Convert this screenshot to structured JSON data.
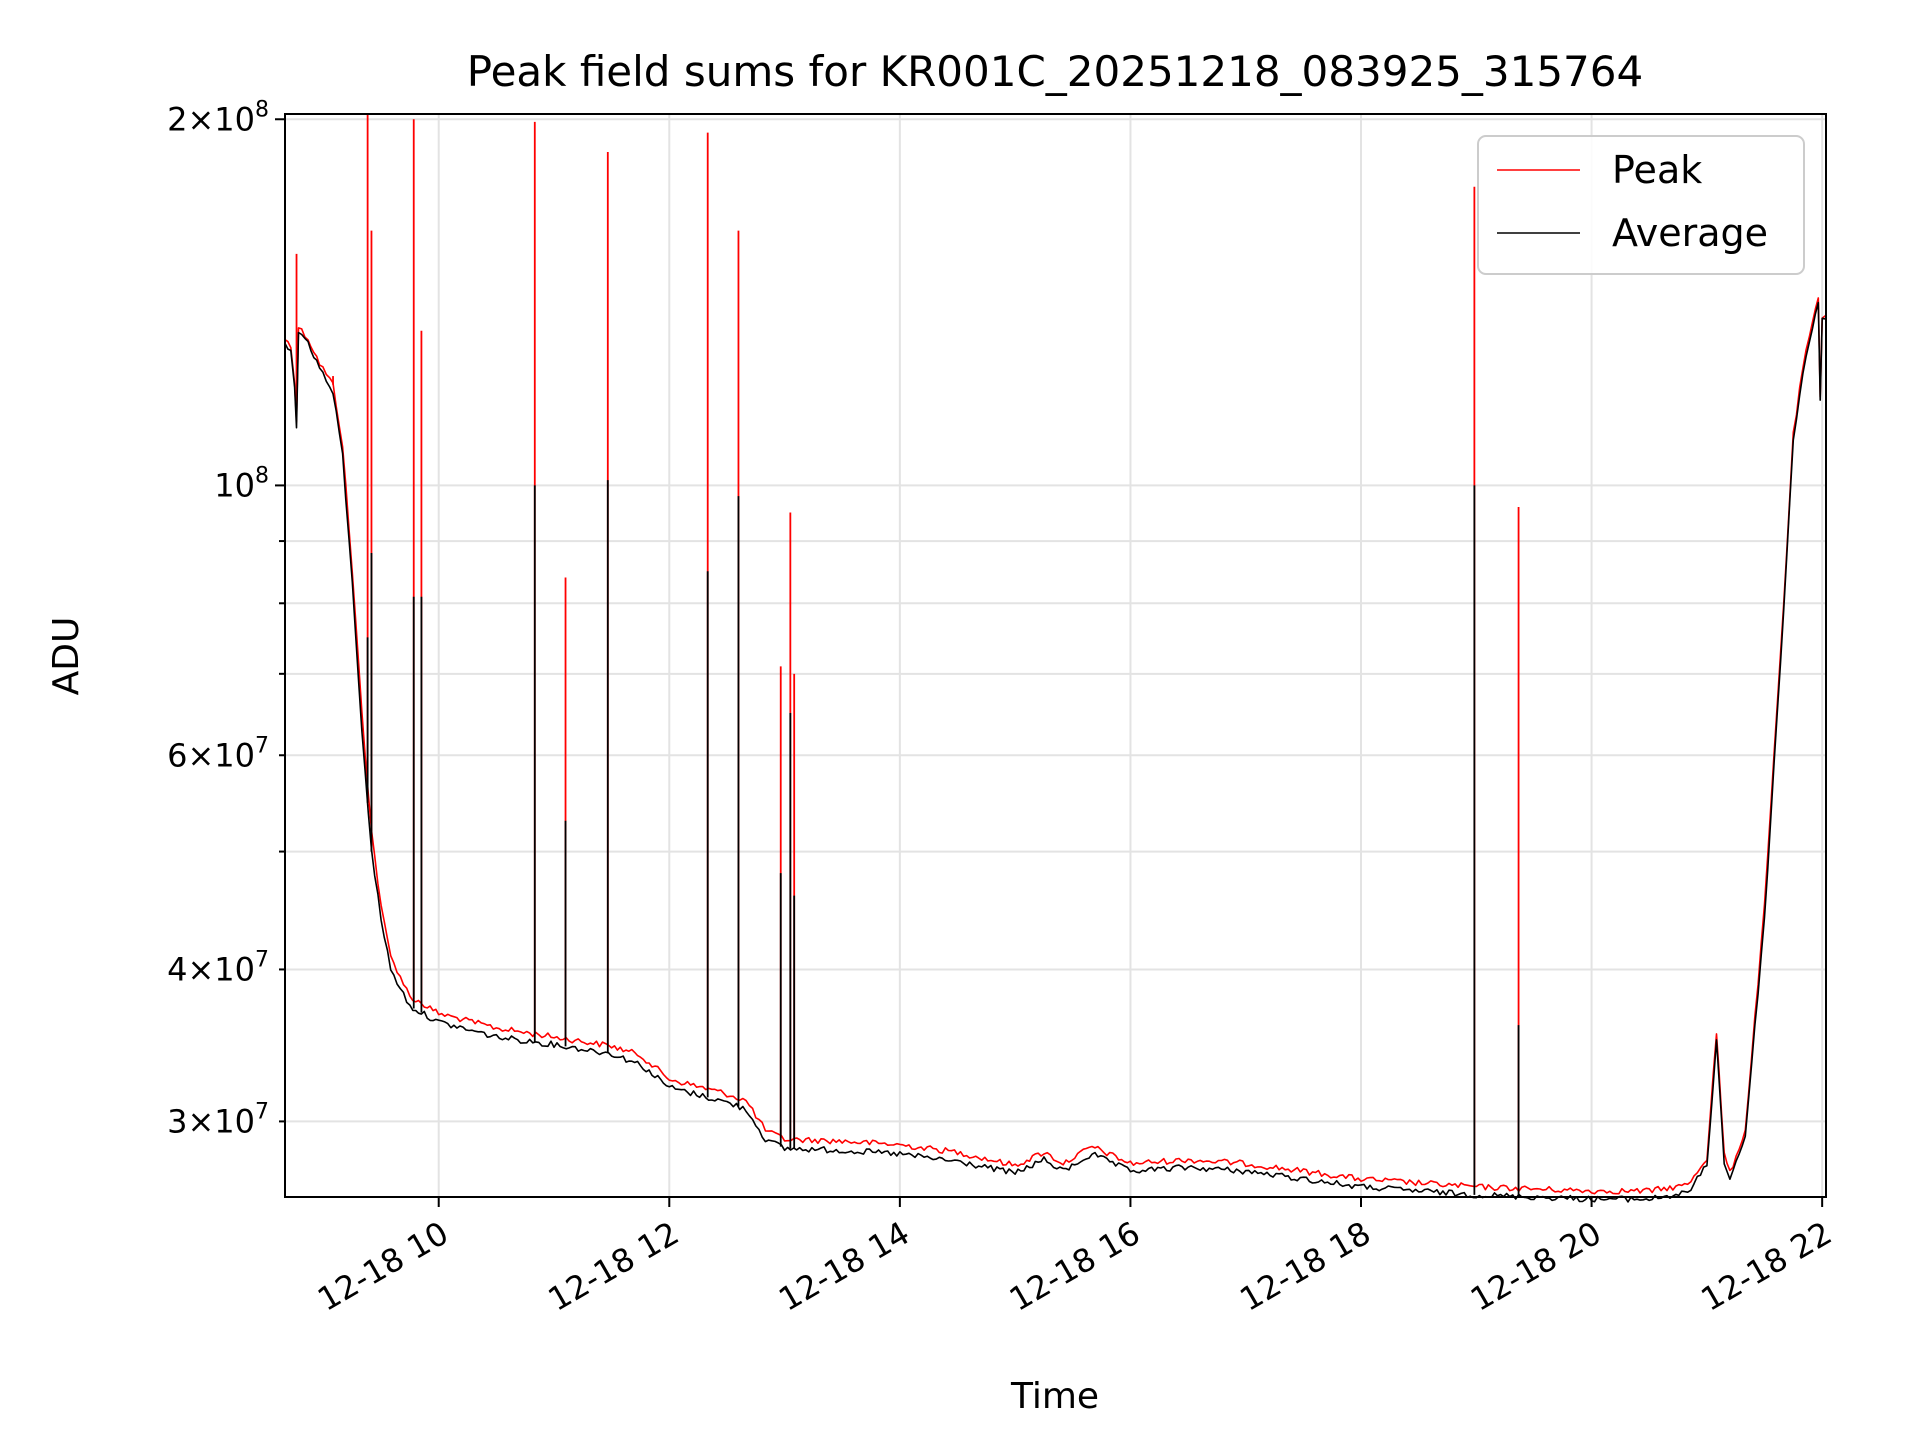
{
  "chart_data": {
    "type": "line",
    "title": "Peak field sums for KR001C_20251218_083925_315764",
    "xlabel": "Time",
    "ylabel": "ADU",
    "y_scale": "log",
    "ylim": [
      26000000,
      202000000
    ],
    "xlim": [
      "12-18 08:40",
      "12-18 22:02"
    ],
    "grid": true,
    "legend_position": "top-right",
    "x_ticks": [
      {
        "label": "12-18 10",
        "value": "12-18 10:00"
      },
      {
        "label": "12-18 12",
        "value": "12-18 12:00"
      },
      {
        "label": "12-18 14",
        "value": "12-18 14:00"
      },
      {
        "label": "12-18 16",
        "value": "12-18 16:00"
      },
      {
        "label": "12-18 18",
        "value": "12-18 18:00"
      },
      {
        "label": "12-18 20",
        "value": "12-18 20:00"
      },
      {
        "label": "12-18 22",
        "value": "12-18 22:00"
      }
    ],
    "y_major_ticks": [
      {
        "mantissa": "",
        "exponent": "8",
        "value": 100000000
      },
      {
        "mantissa": "2",
        "exponent": "8",
        "value": 200000000
      }
    ],
    "y_minor_ticks": [
      {
        "mantissa": "3",
        "exponent": "7",
        "value": 30000000
      },
      {
        "mantissa": "4",
        "exponent": "7",
        "value": 40000000
      },
      {
        "mantissa": "6",
        "exponent": "7",
        "value": 60000000
      }
    ],
    "y_unlabeled_minor": [
      50000000,
      70000000,
      80000000,
      90000000
    ],
    "series": [
      {
        "name": "Peak",
        "color": "#ff0000",
        "points": [
          [
            "12-18 08:40",
            132000000
          ],
          [
            "12-18 08:43",
            130000000
          ],
          [
            "12-18 08:45",
            122000000
          ],
          [
            "12-18 08:46",
            113000000
          ],
          [
            "12-18 08:47",
            135000000
          ],
          [
            "12-18 08:52",
            132000000
          ],
          [
            "12-18 08:58",
            126000000
          ],
          [
            "12-18 09:05",
            121000000
          ],
          [
            "12-18 09:10",
            108000000
          ],
          [
            "12-18 09:15",
            85000000
          ],
          [
            "12-18 09:20",
            65000000
          ],
          [
            "12-18 09:25",
            52000000
          ],
          [
            "12-18 09:30",
            45000000
          ],
          [
            "12-18 09:35",
            41000000
          ],
          [
            "12-18 09:45",
            38000000
          ],
          [
            "12-18 10:00",
            36800000
          ],
          [
            "12-18 10:30",
            35800000
          ],
          [
            "12-18 11:00",
            35200000
          ],
          [
            "12-18 11:30",
            34600000
          ],
          [
            "12-18 11:45",
            34000000
          ],
          [
            "12-18 12:00",
            32500000
          ],
          [
            "12-18 12:30",
            31600000
          ],
          [
            "12-18 12:40",
            31200000
          ],
          [
            "12-18 12:50",
            29500000
          ],
          [
            "12-18 13:00",
            29000000
          ],
          [
            "12-18 13:30",
            28900000
          ],
          [
            "12-18 14:00",
            28700000
          ],
          [
            "12-18 14:30",
            28300000
          ],
          [
            "12-18 15:00",
            27600000
          ],
          [
            "12-18 15:15",
            28300000
          ],
          [
            "12-18 15:25",
            27700000
          ],
          [
            "12-18 15:40",
            28600000
          ],
          [
            "12-18 16:00",
            27700000
          ],
          [
            "12-18 16:30",
            27900000
          ],
          [
            "12-18 17:00",
            27700000
          ],
          [
            "12-18 17:30",
            27300000
          ],
          [
            "12-18 18:00",
            26900000
          ],
          [
            "12-18 18:30",
            26700000
          ],
          [
            "12-18 19:00",
            26500000
          ],
          [
            "12-18 19:30",
            26400000
          ],
          [
            "12-18 20:00",
            26300000
          ],
          [
            "12-18 20:30",
            26300000
          ],
          [
            "12-18 20:50",
            26600000
          ],
          [
            "12-18 21:00",
            28000000
          ],
          [
            "12-18 21:05",
            35500000
          ],
          [
            "12-18 21:09",
            28200000
          ],
          [
            "12-18 21:12",
            27200000
          ],
          [
            "12-18 21:20",
            29500000
          ],
          [
            "12-18 21:30",
            45000000
          ],
          [
            "12-18 21:40",
            80000000
          ],
          [
            "12-18 21:45",
            110000000
          ],
          [
            "12-18 21:50",
            125000000
          ],
          [
            "12-18 21:55",
            136000000
          ],
          [
            "12-18 21:58",
            142000000
          ],
          [
            "12-18 21:59",
            118000000
          ],
          [
            "12-18 22:00",
            138000000
          ],
          [
            "12-18 22:02",
            138000000
          ]
        ],
        "spikes": [
          [
            "12-18 08:46",
            155000000
          ],
          [
            "12-18 09:05",
            123000000
          ],
          [
            "12-18 09:23",
            202000000
          ],
          [
            "12-18 09:25",
            162000000
          ],
          [
            "12-18 09:47",
            200000000
          ],
          [
            "12-18 09:51",
            134000000
          ],
          [
            "12-18 10:50",
            199000000
          ],
          [
            "12-18 11:06",
            84000000
          ],
          [
            "12-18 11:28",
            188000000
          ],
          [
            "12-18 12:20",
            195000000
          ],
          [
            "12-18 12:36",
            162000000
          ],
          [
            "12-18 12:58",
            71000000
          ],
          [
            "12-18 13:03",
            95000000
          ],
          [
            "12-18 13:05",
            70000000
          ],
          [
            "12-18 18:59",
            176000000
          ],
          [
            "12-18 19:22",
            96000000
          ]
        ]
      },
      {
        "name": "Average",
        "color": "#000000",
        "points": [
          [
            "12-18 08:40",
            131000000
          ],
          [
            "12-18 08:43",
            129000000
          ],
          [
            "12-18 08:45",
            121000000
          ],
          [
            "12-18 08:46",
            111000000
          ],
          [
            "12-18 08:47",
            134000000
          ],
          [
            "12-18 08:52",
            131000000
          ],
          [
            "12-18 08:58",
            125000000
          ],
          [
            "12-18 09:05",
            119000000
          ],
          [
            "12-18 09:10",
            106000000
          ],
          [
            "12-18 09:15",
            83000000
          ],
          [
            "12-18 09:20",
            63000000
          ],
          [
            "12-18 09:25",
            50000000
          ],
          [
            "12-18 09:30",
            44000000
          ],
          [
            "12-18 09:35",
            40000000
          ],
          [
            "12-18 09:45",
            37300000
          ],
          [
            "12-18 10:00",
            36200000
          ],
          [
            "12-18 10:30",
            35200000
          ],
          [
            "12-18 11:00",
            34700000
          ],
          [
            "12-18 11:30",
            34100000
          ],
          [
            "12-18 11:45",
            33400000
          ],
          [
            "12-18 12:00",
            32000000
          ],
          [
            "12-18 12:30",
            31100000
          ],
          [
            "12-18 12:40",
            30700000
          ],
          [
            "12-18 12:50",
            29000000
          ],
          [
            "12-18 13:00",
            28500000
          ],
          [
            "12-18 13:30",
            28400000
          ],
          [
            "12-18 14:00",
            28200000
          ],
          [
            "12-18 14:30",
            27800000
          ],
          [
            "12-18 15:00",
            27200000
          ],
          [
            "12-18 15:15",
            27900000
          ],
          [
            "12-18 15:25",
            27300000
          ],
          [
            "12-18 15:40",
            28200000
          ],
          [
            "12-18 16:00",
            27300000
          ],
          [
            "12-18 16:30",
            27500000
          ],
          [
            "12-18 17:00",
            27300000
          ],
          [
            "12-18 17:30",
            26900000
          ],
          [
            "12-18 18:00",
            26500000
          ],
          [
            "12-18 18:30",
            26300000
          ],
          [
            "12-18 19:00",
            26100000
          ],
          [
            "12-18 19:30",
            26000000
          ],
          [
            "12-18 20:00",
            25900000
          ],
          [
            "12-18 20:30",
            25900000
          ],
          [
            "12-18 20:50",
            26200000
          ],
          [
            "12-18 21:00",
            27600000
          ],
          [
            "12-18 21:05",
            35000000
          ],
          [
            "12-18 21:09",
            27800000
          ],
          [
            "12-18 21:12",
            26900000
          ],
          [
            "12-18 21:20",
            29200000
          ],
          [
            "12-18 21:30",
            44000000
          ],
          [
            "12-18 21:40",
            79000000
          ],
          [
            "12-18 21:45",
            109000000
          ],
          [
            "12-18 21:50",
            124000000
          ],
          [
            "12-18 21:55",
            135000000
          ],
          [
            "12-18 21:58",
            141000000
          ],
          [
            "12-18 21:59",
            117000000
          ],
          [
            "12-18 22:00",
            137000000
          ],
          [
            "12-18 22:02",
            137000000
          ]
        ],
        "spikes": [
          [
            "12-18 09:23",
            75000000
          ],
          [
            "12-18 09:25",
            88000000
          ],
          [
            "12-18 09:47",
            81000000
          ],
          [
            "12-18 09:51",
            81000000
          ],
          [
            "12-18 10:50",
            100000000
          ],
          [
            "12-18 11:06",
            53000000
          ],
          [
            "12-18 11:28",
            101000000
          ],
          [
            "12-18 12:20",
            85000000
          ],
          [
            "12-18 12:36",
            98000000
          ],
          [
            "12-18 12:58",
            48000000
          ],
          [
            "12-18 13:03",
            65000000
          ],
          [
            "12-18 13:05",
            46000000
          ],
          [
            "12-18 18:59",
            100000000
          ],
          [
            "12-18 19:22",
            36000000
          ]
        ]
      }
    ]
  }
}
